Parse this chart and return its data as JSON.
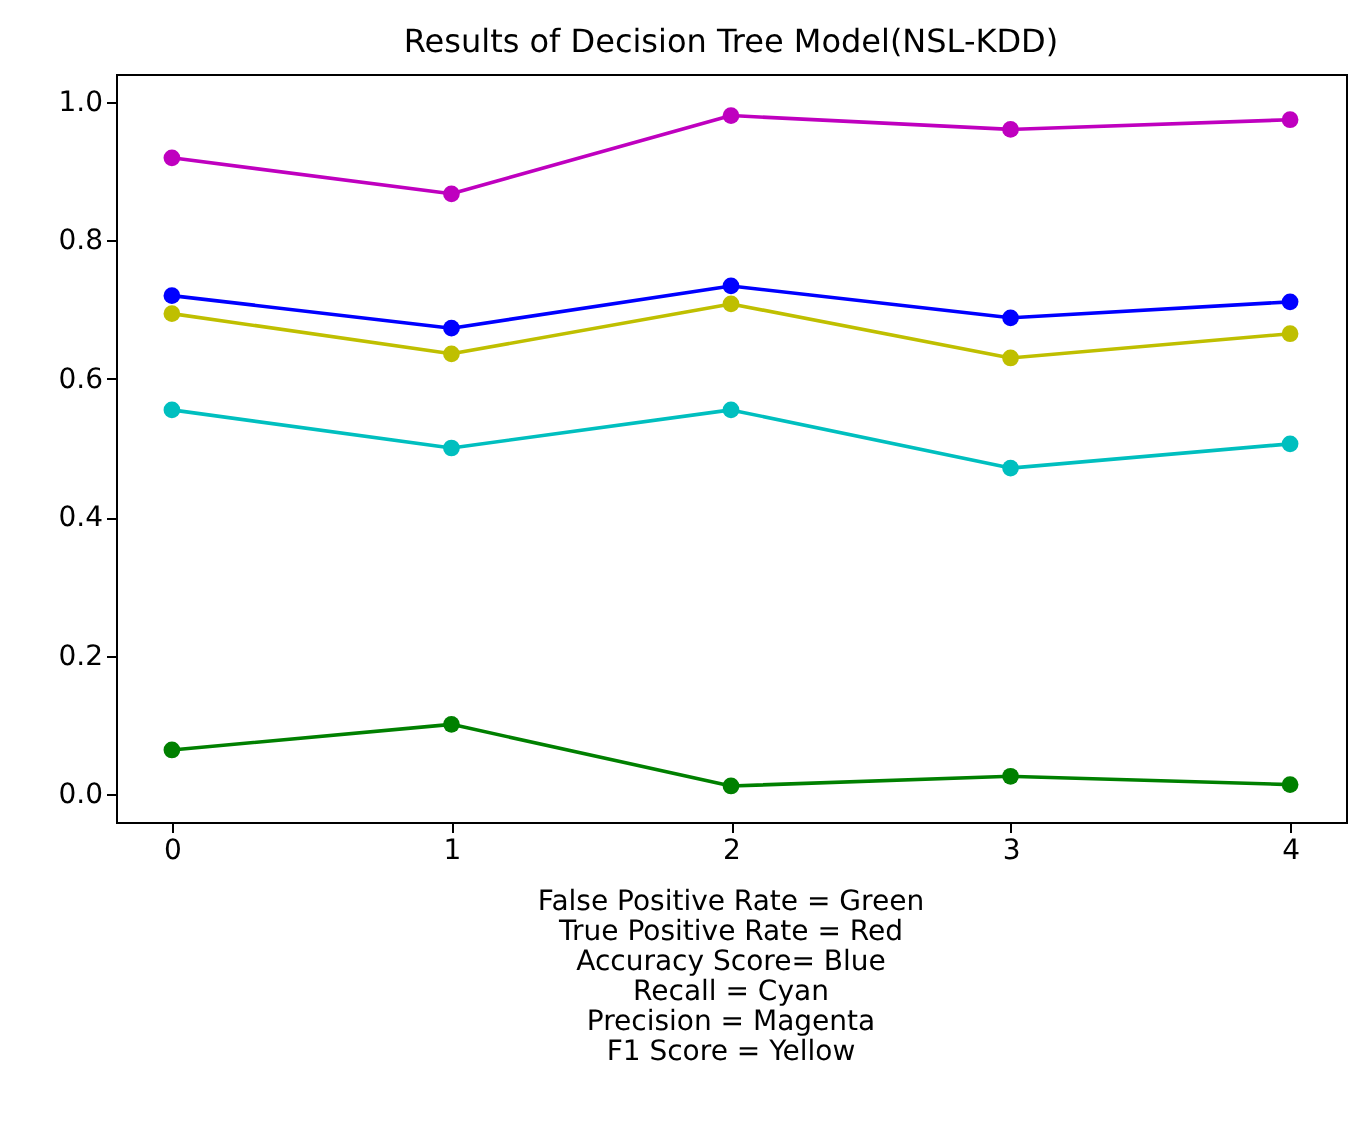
{
  "chart_data": {
    "type": "line",
    "title": "Results of Decision Tree Model(NSL-KDD)",
    "x": [
      0,
      1,
      2,
      3,
      4
    ],
    "xlim": [
      -0.2,
      4.2
    ],
    "xticks": [
      0,
      1,
      2,
      3,
      4
    ],
    "ylim": [
      -0.04,
      1.04
    ],
    "yticks": [
      {
        "value": 0,
        "label": "0.0"
      },
      {
        "value": 0.2,
        "label": "0.2"
      },
      {
        "value": 0.4,
        "label": "0.4"
      },
      {
        "value": 0.6,
        "label": "0.6"
      },
      {
        "value": 0.8,
        "label": "0.8"
      },
      {
        "value": 1,
        "label": "1.0"
      }
    ],
    "grid": false,
    "legend": false,
    "marker": "circle",
    "line_style": "solid",
    "series": [
      {
        "color": "#008000",
        "values": [
          0.064,
          0.101,
          0.012,
          0.026,
          0.014
        ]
      },
      {
        "color": "#00bfbf",
        "values": [
          0.555,
          0.5,
          0.555,
          0.471,
          0.506
        ]
      },
      {
        "color": "#0000ff",
        "values": [
          0.72,
          0.673,
          0.734,
          0.688,
          0.711
        ]
      },
      {
        "color": "#bfbf00",
        "values": [
          0.694,
          0.636,
          0.708,
          0.63,
          0.665
        ]
      },
      {
        "color": "#bf00bf",
        "values": [
          0.919,
          0.867,
          0.98,
          0.96,
          0.974
        ]
      }
    ],
    "annotations": [
      "False Positive Rate = Green",
      "True Positive Rate = Red",
      "Accuracy Score= Blue",
      "Recall = Cyan",
      "Precision = Magenta",
      "F1 Score = Yellow"
    ]
  }
}
